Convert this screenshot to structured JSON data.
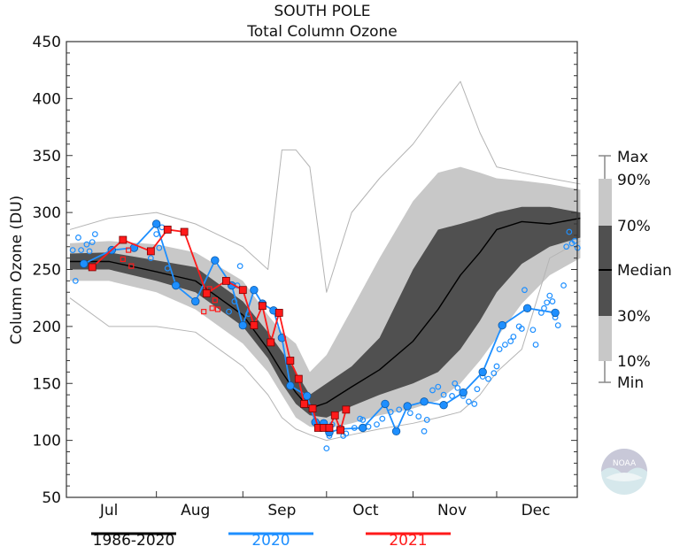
{
  "chart_data": {
    "type": "area",
    "title": "SOUTH POLE",
    "subtitle": "Total Column Ozone",
    "ylabel": "Column Ozone (DU)",
    "xlabel": "",
    "ylim": [
      50,
      450
    ],
    "yticks": [
      50,
      100,
      150,
      200,
      250,
      300,
      350,
      400,
      450
    ],
    "xlim": [
      "Jul 1",
      "Dec 31"
    ],
    "month_labels": [
      "Jul",
      "Aug",
      "Sep",
      "Oct",
      "Nov",
      "Dec"
    ],
    "grid": false,
    "colors": {
      "climatology": "#000000",
      "band_outer": "#c8c8c8",
      "band_inner": "#505050",
      "extremes": "#b4b4b4",
      "y2020": "#1e8fff",
      "y2021": "#ff1a1a"
    },
    "climatology": {
      "name": "1986-2020",
      "dates": [
        "Jul 1",
        "Jul 15",
        "Aug 1",
        "Aug 15",
        "Sep 1",
        "Sep 10",
        "Sep 15",
        "Sep 20",
        "Sep 25",
        "Oct 1",
        "Oct 10",
        "Oct 20",
        "Nov 1",
        "Nov 10",
        "Nov 18",
        "Nov 25",
        "Dec 1",
        "Dec 10",
        "Dec 20",
        "Dec 31"
      ],
      "min": [
        225,
        200,
        200,
        195,
        165,
        140,
        120,
        110,
        105,
        100,
        105,
        110,
        115,
        120,
        125,
        140,
        160,
        180,
        260,
        275
      ],
      "p10": [
        240,
        240,
        230,
        215,
        185,
        160,
        140,
        120,
        112,
        110,
        115,
        122,
        128,
        135,
        150,
        170,
        190,
        220,
        245,
        260
      ],
      "p30": [
        250,
        250,
        240,
        230,
        200,
        172,
        150,
        132,
        122,
        120,
        130,
        140,
        150,
        160,
        180,
        205,
        230,
        255,
        270,
        278
      ],
      "median": [
        257,
        257,
        248,
        240,
        210,
        180,
        160,
        142,
        128,
        133,
        147,
        162,
        187,
        215,
        245,
        265,
        285,
        292,
        290,
        295
      ],
      "p70": [
        264,
        265,
        258,
        252,
        222,
        195,
        178,
        160,
        140,
        150,
        165,
        190,
        250,
        285,
        290,
        295,
        300,
        305,
        305,
        300
      ],
      "p90": [
        273,
        275,
        272,
        265,
        240,
        210,
        195,
        185,
        160,
        175,
        215,
        260,
        310,
        335,
        340,
        335,
        330,
        328,
        325,
        320
      ],
      "max": [
        285,
        295,
        300,
        290,
        270,
        250,
        355,
        355,
        340,
        230,
        300,
        330,
        360,
        390,
        415,
        370,
        340,
        335,
        330,
        325
      ]
    },
    "series": [
      {
        "name": "2020",
        "connected": [
          [
            "Jul 6",
            255
          ],
          [
            "Jul 16",
            267
          ],
          [
            "Jul 24",
            269
          ],
          [
            "Aug 1",
            290
          ],
          [
            "Aug 8",
            236
          ],
          [
            "Aug 15",
            222
          ],
          [
            "Aug 22",
            258
          ],
          [
            "Aug 28",
            236
          ],
          [
            "Sep 1",
            201
          ],
          [
            "Sep 5",
            232
          ],
          [
            "Sep 8",
            220
          ],
          [
            "Sep 12",
            214
          ],
          [
            "Sep 15",
            190
          ],
          [
            "Sep 18",
            148
          ],
          [
            "Sep 24",
            139
          ],
          [
            "Sep 27",
            116
          ],
          [
            "Sep 30",
            115
          ],
          [
            "Oct 2",
            107
          ],
          [
            "Oct 6",
            110
          ],
          [
            "Oct 14",
            111
          ],
          [
            "Oct 22",
            132
          ],
          [
            "Oct 26",
            108
          ],
          [
            "Oct 30",
            130
          ],
          [
            "Nov 5",
            134
          ],
          [
            "Nov 12",
            131
          ],
          [
            "Nov 19",
            142
          ],
          [
            "Nov 26",
            160
          ],
          [
            "Dec 3",
            201
          ],
          [
            "Dec 12",
            216
          ],
          [
            "Dec 22",
            212
          ]
        ],
        "daily": [
          [
            "Jul 2",
            267
          ],
          [
            "Jul 3",
            240
          ],
          [
            "Jul 4",
            278
          ],
          [
            "Jul 5",
            267
          ],
          [
            "Jul 7",
            272
          ],
          [
            "Jul 8",
            266
          ],
          [
            "Jul 9",
            274
          ],
          [
            "Jul 10",
            281
          ],
          [
            "Jul 30",
            260
          ],
          [
            "Aug 1",
            281
          ],
          [
            "Aug 2",
            269
          ],
          [
            "Aug 3",
            287
          ],
          [
            "Aug 5",
            251
          ],
          [
            "Aug 27",
            213
          ],
          [
            "Aug 29",
            222
          ],
          [
            "Aug 30",
            236
          ],
          [
            "Aug 31",
            253
          ],
          [
            "Sep 3",
            211
          ],
          [
            "Oct 1",
            93
          ],
          [
            "Oct 2",
            104
          ],
          [
            "Oct 3",
            114
          ],
          [
            "Oct 7",
            104
          ],
          [
            "Oct 8",
            106
          ],
          [
            "Oct 11",
            111
          ],
          [
            "Oct 13",
            119
          ],
          [
            "Oct 14",
            118
          ],
          [
            "Oct 16",
            112
          ],
          [
            "Oct 19",
            114
          ],
          [
            "Oct 21",
            119
          ],
          [
            "Oct 24",
            125
          ],
          [
            "Oct 27",
            127
          ],
          [
            "Oct 31",
            124
          ],
          [
            "Nov 3",
            121
          ],
          [
            "Nov 5",
            108
          ],
          [
            "Nov 6",
            118
          ],
          [
            "Nov 8",
            144
          ],
          [
            "Nov 10",
            147
          ],
          [
            "Nov 12",
            140
          ],
          [
            "Nov 15",
            139
          ],
          [
            "Nov 16",
            150
          ],
          [
            "Nov 17",
            146
          ],
          [
            "Nov 19",
            139
          ],
          [
            "Nov 21",
            134
          ],
          [
            "Nov 23",
            132
          ],
          [
            "Nov 24",
            145
          ],
          [
            "Nov 26",
            156
          ],
          [
            "Nov 28",
            154
          ],
          [
            "Nov 30",
            159
          ],
          [
            "Dec 1",
            165
          ],
          [
            "Dec 2",
            180
          ],
          [
            "Dec 4",
            184
          ],
          [
            "Dec 6",
            187
          ],
          [
            "Dec 7",
            191
          ],
          [
            "Dec 9",
            200
          ],
          [
            "Dec 10",
            198
          ],
          [
            "Dec 11",
            232
          ],
          [
            "Dec 14",
            197
          ],
          [
            "Dec 15",
            184
          ],
          [
            "Dec 17",
            212
          ],
          [
            "Dec 18",
            216
          ],
          [
            "Dec 19",
            221
          ],
          [
            "Dec 20",
            227
          ],
          [
            "Dec 21",
            222
          ],
          [
            "Dec 22",
            208
          ],
          [
            "Dec 23",
            201
          ],
          [
            "Dec 25",
            236
          ],
          [
            "Dec 26",
            270
          ],
          [
            "Dec 27",
            283
          ],
          [
            "Dec 28",
            273
          ],
          [
            "Dec 29",
            275
          ],
          [
            "Dec 30",
            269
          ]
        ]
      },
      {
        "name": "2021",
        "connected": [
          [
            "Jul 9",
            252
          ],
          [
            "Jul 20",
            276
          ],
          [
            "Jul 30",
            266
          ],
          [
            "Aug 5",
            285
          ],
          [
            "Aug 11",
            283
          ],
          [
            "Aug 19",
            229
          ],
          [
            "Aug 26",
            240
          ],
          [
            "Sep 1",
            232
          ],
          [
            "Sep 5",
            201
          ],
          [
            "Sep 8",
            218
          ],
          [
            "Sep 11",
            186
          ],
          [
            "Sep 14",
            212
          ],
          [
            "Sep 18",
            170
          ],
          [
            "Sep 21",
            154
          ],
          [
            "Sep 23",
            132
          ],
          [
            "Sep 26",
            128
          ],
          [
            "Sep 28",
            111
          ],
          [
            "Sep 30",
            111
          ],
          [
            "Oct 2",
            111
          ],
          [
            "Oct 4",
            122
          ],
          [
            "Oct 6",
            109
          ],
          [
            "Oct 8",
            127
          ]
        ],
        "daily": [
          [
            "Jul 20",
            259
          ],
          [
            "Jul 22",
            267
          ],
          [
            "Jul 23",
            253
          ],
          [
            "Aug 18",
            213
          ],
          [
            "Aug 20",
            233
          ],
          [
            "Aug 21",
            216
          ],
          [
            "Aug 22",
            223
          ],
          [
            "Aug 23",
            215
          ]
        ]
      }
    ],
    "legend": {
      "percentiles": [
        "Max",
        "90%",
        "70%",
        "Median",
        "30%",
        "10%",
        "Min"
      ],
      "series_labels": [
        "1986-2020",
        "2020",
        "2021"
      ],
      "placement": "right and bottom"
    }
  },
  "logo": {
    "text": "NOAA"
  }
}
